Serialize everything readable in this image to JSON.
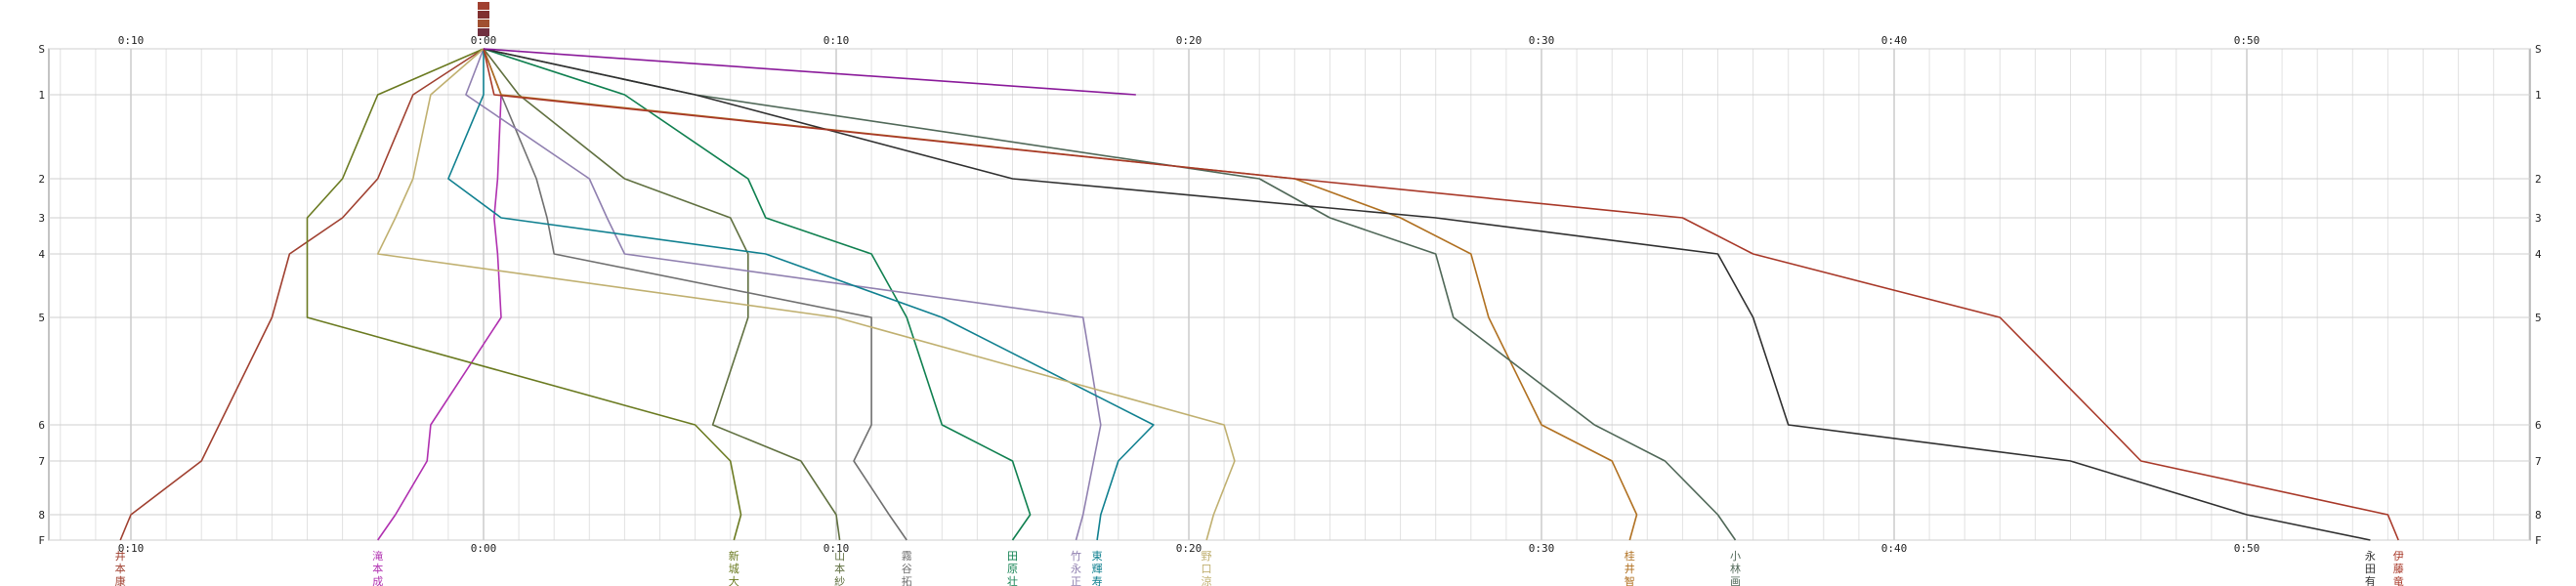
{
  "chart_data": {
    "type": "line",
    "x_axis": {
      "min": -12,
      "max": 61,
      "ticks": [
        {
          "value": -10,
          "label": "0:10"
        },
        {
          "value": 0,
          "label": "0:00"
        },
        {
          "value": 10,
          "label": "0:10"
        },
        {
          "value": 20,
          "label": "0:20"
        },
        {
          "value": 30,
          "label": "0:30"
        },
        {
          "value": 40,
          "label": "0:40"
        },
        {
          "value": 50,
          "label": "0:50"
        }
      ]
    },
    "y_axis": {
      "min": 0,
      "max": 9,
      "rows": [
        {
          "value": 0,
          "label": "S"
        },
        {
          "value": 1,
          "label": "1"
        },
        {
          "value": 2,
          "label": "2"
        },
        {
          "value": 3,
          "label": "3"
        },
        {
          "value": 4,
          "label": "4"
        },
        {
          "value": 5,
          "label": "5"
        },
        {
          "value": 6,
          "label": "6"
        },
        {
          "value": 7,
          "label": "7"
        },
        {
          "value": 8,
          "label": "8"
        },
        {
          "value": 9,
          "label": "F"
        }
      ]
    },
    "grid": true,
    "series": [
      {
        "name": "井本康",
        "color": "#a04030",
        "points": [
          [
            0,
            0
          ],
          [
            -2,
            1
          ],
          [
            -3,
            2
          ],
          [
            -4,
            3
          ],
          [
            -5.5,
            4
          ],
          [
            -6,
            5
          ],
          [
            -8,
            7
          ],
          [
            -10,
            8
          ],
          [
            -10.3,
            9
          ]
        ]
      },
      {
        "name": "滝本成",
        "color": "#b030b0",
        "points": [
          [
            0,
            0
          ],
          [
            0.5,
            1
          ],
          [
            0.4,
            2
          ],
          [
            0.3,
            3
          ],
          [
            0.4,
            4
          ],
          [
            0.5,
            5
          ],
          [
            -1.5,
            6
          ],
          [
            -1.6,
            7
          ],
          [
            -2.5,
            8
          ],
          [
            -3,
            9
          ]
        ]
      },
      {
        "name": "新城大",
        "color": "#6a7a20",
        "points": [
          [
            0,
            0
          ],
          [
            -3,
            1
          ],
          [
            -4,
            2
          ],
          [
            -5,
            3
          ],
          [
            -5,
            4
          ],
          [
            -5,
            5
          ],
          [
            6,
            6
          ],
          [
            7,
            7
          ],
          [
            7.3,
            8
          ],
          [
            7.1,
            9
          ]
        ]
      },
      {
        "name": "山本紗",
        "color": "#607040",
        "points": [
          [
            0,
            0
          ],
          [
            1,
            1
          ],
          [
            4,
            2
          ],
          [
            7,
            3
          ],
          [
            7.5,
            4
          ],
          [
            7.5,
            5
          ],
          [
            6.5,
            6
          ],
          [
            9,
            7
          ],
          [
            10,
            8
          ],
          [
            10.1,
            9
          ]
        ]
      },
      {
        "name": "霧谷拓",
        "color": "#707070",
        "points": [
          [
            0,
            0
          ],
          [
            0.5,
            1
          ],
          [
            1.5,
            2
          ],
          [
            1.8,
            3
          ],
          [
            2,
            4
          ],
          [
            11,
            5
          ],
          [
            11,
            6
          ],
          [
            10.5,
            7
          ],
          [
            11.5,
            8
          ],
          [
            12,
            9
          ]
        ]
      },
      {
        "name": "田原壮",
        "color": "#108050",
        "points": [
          [
            0,
            0
          ],
          [
            4,
            1
          ],
          [
            7.5,
            2
          ],
          [
            8,
            3
          ],
          [
            11,
            4
          ],
          [
            12,
            5
          ],
          [
            13,
            6
          ],
          [
            15,
            7
          ],
          [
            15.5,
            8
          ],
          [
            15,
            9
          ]
        ]
      },
      {
        "name": "竹永正",
        "color": "#9080b0",
        "points": [
          [
            0,
            0
          ],
          [
            -0.5,
            1
          ],
          [
            3,
            2
          ],
          [
            3.5,
            3
          ],
          [
            4,
            4
          ],
          [
            17,
            5
          ],
          [
            17.5,
            6
          ],
          [
            17.3,
            7
          ],
          [
            17,
            8
          ],
          [
            16.8,
            9
          ]
        ]
      },
      {
        "name": "東輝寿",
        "color": "#108090",
        "points": [
          [
            0,
            0
          ],
          [
            0,
            1
          ],
          [
            -1,
            2
          ],
          [
            0.5,
            3
          ],
          [
            8,
            4
          ],
          [
            13,
            5
          ],
          [
            19,
            6
          ],
          [
            18,
            7
          ],
          [
            17.5,
            8
          ],
          [
            17.4,
            9
          ]
        ]
      },
      {
        "name": "野口涼",
        "color": "#c0b070",
        "points": [
          [
            0,
            0
          ],
          [
            -1.5,
            1
          ],
          [
            -2,
            2
          ],
          [
            -2.5,
            3
          ],
          [
            -3,
            4
          ],
          [
            10,
            5
          ],
          [
            21,
            6
          ],
          [
            21.3,
            7
          ],
          [
            20.7,
            8
          ],
          [
            20.5,
            9
          ]
        ]
      },
      {
        "name": "桂井智",
        "color": "#b07020",
        "points": [
          [
            0,
            0
          ],
          [
            0.5,
            1
          ],
          [
            23,
            2
          ],
          [
            26,
            3
          ],
          [
            28,
            4
          ],
          [
            28.5,
            5
          ],
          [
            30,
            6
          ],
          [
            32,
            7
          ],
          [
            32.7,
            8
          ],
          [
            32.5,
            9
          ]
        ]
      },
      {
        "name": "小林画",
        "color": "#506858",
        "points": [
          [
            0,
            0
          ],
          [
            6,
            1
          ],
          [
            22,
            2
          ],
          [
            24,
            3
          ],
          [
            27,
            4
          ],
          [
            27.5,
            5
          ],
          [
            31.5,
            6
          ],
          [
            33.5,
            7
          ],
          [
            35,
            8
          ],
          [
            35.5,
            9
          ]
        ]
      },
      {
        "name": "永田有",
        "color": "#303030",
        "points": [
          [
            0,
            0
          ],
          [
            6,
            1
          ],
          [
            15,
            2
          ],
          [
            27,
            3
          ],
          [
            35,
            4
          ],
          [
            36,
            5
          ],
          [
            37,
            6
          ],
          [
            45,
            7
          ],
          [
            50,
            8
          ],
          [
            53.5,
            9
          ]
        ]
      },
      {
        "name": "伊藤竜",
        "color": "#a83828",
        "points": [
          [
            0,
            0
          ],
          [
            0.3,
            1
          ],
          [
            23,
            2
          ],
          [
            34,
            3
          ],
          [
            36,
            4
          ],
          [
            43,
            5
          ],
          [
            46,
            6
          ],
          [
            47,
            7
          ],
          [
            54,
            8
          ],
          [
            54.3,
            9
          ]
        ]
      },
      {
        "name": "",
        "color": "#8a1a9a",
        "points": [
          [
            0,
            0
          ],
          [
            18.5,
            1
          ]
        ]
      }
    ],
    "markers": [
      {
        "x": 0,
        "color": "#a04030"
      },
      {
        "x": 0,
        "color": "#803030"
      },
      {
        "x": 0,
        "color": "#a05030"
      },
      {
        "x": 0,
        "color": "#703040"
      }
    ]
  }
}
